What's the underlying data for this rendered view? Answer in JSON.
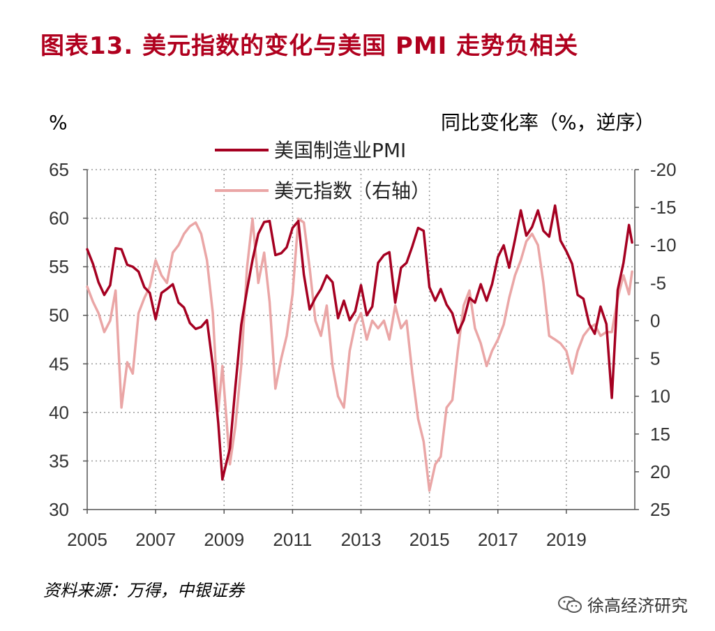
{
  "title": "图表13.  美元指数的变化与美国 PMI 走势负相关",
  "source": "资料来源：万得，中银证券",
  "watermark": "徐高经济研究",
  "watermark_icon": "wechat-icon",
  "chart_data": {
    "type": "line",
    "title": "图表13.  美元指数的变化与美国 PMI 走势负相关",
    "left_unit": "%",
    "right_unit": "同比变化率（%，逆序）",
    "ylim_left": [
      30,
      65
    ],
    "yticks_left": [
      30,
      35,
      40,
      45,
      50,
      55,
      60,
      65
    ],
    "ylim_right": [
      25,
      -20
    ],
    "yticks_right": [
      25,
      20,
      15,
      10,
      5,
      0,
      -5,
      -10,
      -15,
      -20
    ],
    "right_axis_reversed": true,
    "xlim": [
      2005,
      2021
    ],
    "xticks": [
      2005,
      2007,
      2009,
      2011,
      2013,
      2015,
      2017,
      2019
    ],
    "grid": "dotted",
    "legend_position": "top-center",
    "colors": {
      "pmi": "#a50021",
      "dxy": "#eaa6a6"
    },
    "series": [
      {
        "name": "美国制造业PMI",
        "axis": "left",
        "color": "#a50021",
        "points": [
          [
            2005.0,
            56.8
          ],
          [
            2005.17,
            55.3
          ],
          [
            2005.33,
            53.4
          ],
          [
            2005.5,
            52.1
          ],
          [
            2005.67,
            53.1
          ],
          [
            2005.83,
            56.9
          ],
          [
            2006.0,
            56.8
          ],
          [
            2006.17,
            55.2
          ],
          [
            2006.33,
            55.0
          ],
          [
            2006.5,
            54.5
          ],
          [
            2006.67,
            52.9
          ],
          [
            2006.83,
            52.3
          ],
          [
            2007.0,
            49.6
          ],
          [
            2007.17,
            52.3
          ],
          [
            2007.33,
            52.7
          ],
          [
            2007.5,
            53.2
          ],
          [
            2007.67,
            51.3
          ],
          [
            2007.83,
            50.8
          ],
          [
            2008.0,
            49.2
          ],
          [
            2008.17,
            48.6
          ],
          [
            2008.33,
            48.8
          ],
          [
            2008.5,
            49.5
          ],
          [
            2008.67,
            44.8
          ],
          [
            2008.83,
            38.9
          ],
          [
            2008.95,
            33.1
          ],
          [
            2009.17,
            36.3
          ],
          [
            2009.33,
            42.6
          ],
          [
            2009.5,
            49.0
          ],
          [
            2009.67,
            52.6
          ],
          [
            2009.83,
            55.7
          ],
          [
            2010.0,
            58.4
          ],
          [
            2010.17,
            59.6
          ],
          [
            2010.33,
            59.7
          ],
          [
            2010.5,
            56.2
          ],
          [
            2010.67,
            56.4
          ],
          [
            2010.83,
            57.0
          ],
          [
            2011.0,
            59.0
          ],
          [
            2011.17,
            59.7
          ],
          [
            2011.33,
            54.2
          ],
          [
            2011.5,
            50.6
          ],
          [
            2011.67,
            51.8
          ],
          [
            2011.83,
            52.7
          ],
          [
            2012.0,
            54.1
          ],
          [
            2012.17,
            53.4
          ],
          [
            2012.33,
            49.7
          ],
          [
            2012.5,
            51.5
          ],
          [
            2012.67,
            49.5
          ],
          [
            2012.83,
            50.4
          ],
          [
            2013.0,
            53.1
          ],
          [
            2013.17,
            50.0
          ],
          [
            2013.33,
            50.9
          ],
          [
            2013.5,
            55.4
          ],
          [
            2013.67,
            56.2
          ],
          [
            2013.83,
            56.5
          ],
          [
            2014.0,
            51.3
          ],
          [
            2014.17,
            54.9
          ],
          [
            2014.33,
            55.4
          ],
          [
            2014.5,
            57.1
          ],
          [
            2014.67,
            59.0
          ],
          [
            2014.83,
            58.7
          ],
          [
            2015.0,
            52.9
          ],
          [
            2015.17,
            51.5
          ],
          [
            2015.33,
            52.7
          ],
          [
            2015.5,
            51.1
          ],
          [
            2015.67,
            50.2
          ],
          [
            2015.83,
            48.2
          ],
          [
            2016.0,
            49.5
          ],
          [
            2016.17,
            51.8
          ],
          [
            2016.33,
            51.3
          ],
          [
            2016.5,
            53.2
          ],
          [
            2016.67,
            51.5
          ],
          [
            2016.83,
            53.2
          ],
          [
            2017.0,
            56.0
          ],
          [
            2017.17,
            57.2
          ],
          [
            2017.33,
            54.9
          ],
          [
            2017.5,
            57.8
          ],
          [
            2017.67,
            60.8
          ],
          [
            2017.83,
            58.2
          ],
          [
            2018.0,
            59.1
          ],
          [
            2018.17,
            60.8
          ],
          [
            2018.33,
            58.7
          ],
          [
            2018.5,
            58.1
          ],
          [
            2018.67,
            61.3
          ],
          [
            2018.83,
            57.7
          ],
          [
            2019.0,
            56.6
          ],
          [
            2019.17,
            55.3
          ],
          [
            2019.33,
            52.1
          ],
          [
            2019.5,
            51.7
          ],
          [
            2019.67,
            49.1
          ],
          [
            2019.83,
            48.1
          ],
          [
            2020.0,
            50.9
          ],
          [
            2020.17,
            49.1
          ],
          [
            2020.33,
            41.5
          ],
          [
            2020.5,
            52.6
          ],
          [
            2020.67,
            55.4
          ],
          [
            2020.83,
            59.3
          ],
          [
            2020.92,
            57.5
          ]
        ]
      },
      {
        "name": "美元指数（右轴）",
        "axis": "right",
        "color": "#eaa6a6",
        "points": [
          [
            2005.0,
            -4.5
          ],
          [
            2005.17,
            -2.5
          ],
          [
            2005.33,
            -1.0
          ],
          [
            2005.5,
            1.5
          ],
          [
            2005.67,
            0.0
          ],
          [
            2005.83,
            -4.0
          ],
          [
            2006.0,
            11.5
          ],
          [
            2006.17,
            5.5
          ],
          [
            2006.33,
            7.0
          ],
          [
            2006.5,
            -1.0
          ],
          [
            2006.67,
            -3.0
          ],
          [
            2006.83,
            -4.5
          ],
          [
            2007.0,
            -8.0
          ],
          [
            2007.17,
            -6.0
          ],
          [
            2007.33,
            -5.0
          ],
          [
            2007.5,
            -9.0
          ],
          [
            2007.67,
            -10.0
          ],
          [
            2007.83,
            -11.5
          ],
          [
            2008.0,
            -12.5
          ],
          [
            2008.17,
            -13.0
          ],
          [
            2008.33,
            -11.5
          ],
          [
            2008.5,
            -8.0
          ],
          [
            2008.67,
            -1.0
          ],
          [
            2008.83,
            12.0
          ],
          [
            2008.95,
            6.0
          ],
          [
            2009.17,
            19.0
          ],
          [
            2009.33,
            14.0
          ],
          [
            2009.5,
            6.0
          ],
          [
            2009.67,
            -7.0
          ],
          [
            2009.83,
            -13.5
          ],
          [
            2010.0,
            -5.0
          ],
          [
            2010.17,
            -9.0
          ],
          [
            2010.33,
            -2.5
          ],
          [
            2010.5,
            9.0
          ],
          [
            2010.67,
            5.0
          ],
          [
            2010.83,
            2.0
          ],
          [
            2011.0,
            -3.5
          ],
          [
            2011.17,
            -13.5
          ],
          [
            2011.33,
            -13.0
          ],
          [
            2011.5,
            -7.0
          ],
          [
            2011.67,
            0.0
          ],
          [
            2011.83,
            2.0
          ],
          [
            2012.0,
            -2.0
          ],
          [
            2012.17,
            6.0
          ],
          [
            2012.33,
            10.0
          ],
          [
            2012.5,
            11.5
          ],
          [
            2012.67,
            4.0
          ],
          [
            2012.83,
            0.5
          ],
          [
            2013.0,
            -1.0
          ],
          [
            2013.17,
            2.5
          ],
          [
            2013.33,
            0.0
          ],
          [
            2013.5,
            1.0
          ],
          [
            2013.67,
            0.0
          ],
          [
            2013.83,
            2.5
          ],
          [
            2014.0,
            -2.0
          ],
          [
            2014.17,
            1.0
          ],
          [
            2014.33,
            0.0
          ],
          [
            2014.5,
            7.0
          ],
          [
            2014.67,
            13.0
          ],
          [
            2014.83,
            16.0
          ],
          [
            2015.0,
            22.5
          ],
          [
            2015.17,
            19.0
          ],
          [
            2015.33,
            18.0
          ],
          [
            2015.5,
            11.5
          ],
          [
            2015.67,
            10.5
          ],
          [
            2015.83,
            4.0
          ],
          [
            2016.0,
            -2.0
          ],
          [
            2016.17,
            -4.0
          ],
          [
            2016.33,
            1.0
          ],
          [
            2016.5,
            3.0
          ],
          [
            2016.67,
            6.0
          ],
          [
            2016.83,
            4.0
          ],
          [
            2017.0,
            2.5
          ],
          [
            2017.17,
            0.5
          ],
          [
            2017.33,
            -3.0
          ],
          [
            2017.5,
            -6.0
          ],
          [
            2017.67,
            -8.0
          ],
          [
            2017.83,
            -10.5
          ],
          [
            2018.0,
            -11.5
          ],
          [
            2018.17,
            -10.0
          ],
          [
            2018.33,
            -5.0
          ],
          [
            2018.5,
            2.0
          ],
          [
            2018.67,
            2.5
          ],
          [
            2018.83,
            3.0
          ],
          [
            2019.0,
            4.0
          ],
          [
            2019.17,
            7.0
          ],
          [
            2019.33,
            4.0
          ],
          [
            2019.5,
            2.0
          ],
          [
            2019.67,
            1.0
          ],
          [
            2019.83,
            0.5
          ],
          [
            2020.0,
            2.0
          ],
          [
            2020.17,
            1.5
          ],
          [
            2020.33,
            1.5
          ],
          [
            2020.5,
            -3.0
          ],
          [
            2020.67,
            -6.0
          ],
          [
            2020.83,
            -3.5
          ],
          [
            2020.92,
            -6.5
          ]
        ]
      }
    ]
  }
}
